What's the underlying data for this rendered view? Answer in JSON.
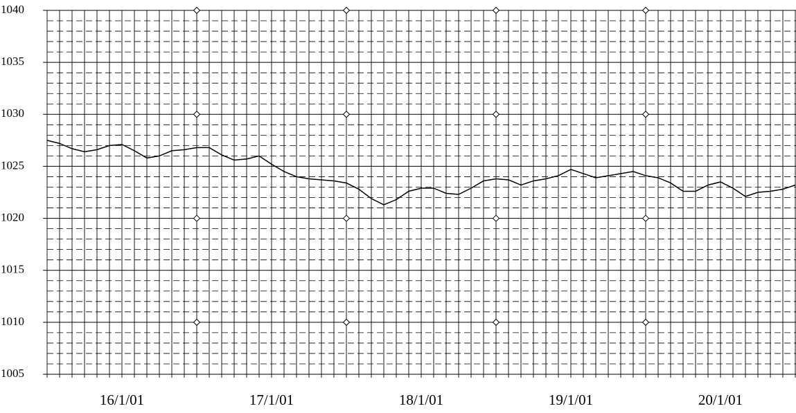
{
  "chart_data": {
    "type": "line",
    "x": [
      null,
      null,
      null,
      null,
      null,
      null,
      "16/1/01",
      null,
      null,
      null,
      null,
      null,
      null,
      null,
      null,
      null,
      null,
      null,
      "17/1/01",
      null,
      null,
      null,
      null,
      null,
      null,
      null,
      null,
      null,
      null,
      null,
      "18/1/01",
      null,
      null,
      null,
      null,
      null,
      null,
      null,
      null,
      null,
      null,
      null,
      "19/1/01",
      null,
      null,
      null,
      null,
      null,
      null,
      null,
      null,
      null,
      null,
      null,
      "20/1/01",
      null,
      null,
      null,
      null,
      null,
      null
    ],
    "values": [
      1027.5,
      1027.2,
      1026.7,
      1026.4,
      1026.6,
      1027.0,
      1027.1,
      1026.5,
      1025.8,
      1026.0,
      1026.5,
      1026.6,
      1026.8,
      1026.8,
      1026.1,
      1025.6,
      1025.7,
      1026.0,
      1025.2,
      1024.5,
      1024.0,
      1023.8,
      1023.7,
      1023.6,
      1023.4,
      1022.8,
      1021.9,
      1021.3,
      1021.8,
      1022.6,
      1022.9,
      1022.9,
      1022.4,
      1022.3,
      1022.9,
      1023.6,
      1023.8,
      1023.7,
      1023.2,
      1023.6,
      1023.8,
      1024.1,
      1024.7,
      1024.3,
      1023.9,
      1024.1,
      1024.3,
      1024.5,
      1024.1,
      1023.9,
      1023.4,
      1022.6,
      1022.6,
      1023.2,
      1023.5,
      1022.9,
      1022.1,
      1022.5,
      1022.6,
      1022.8,
      1023.2
    ],
    "color": "#000000",
    "ylim": [
      1005,
      1040
    ],
    "yticks": [
      1005,
      1010,
      1015,
      1020,
      1025,
      1030,
      1035,
      1040
    ],
    "grid": true,
    "minor_grid": true
  }
}
